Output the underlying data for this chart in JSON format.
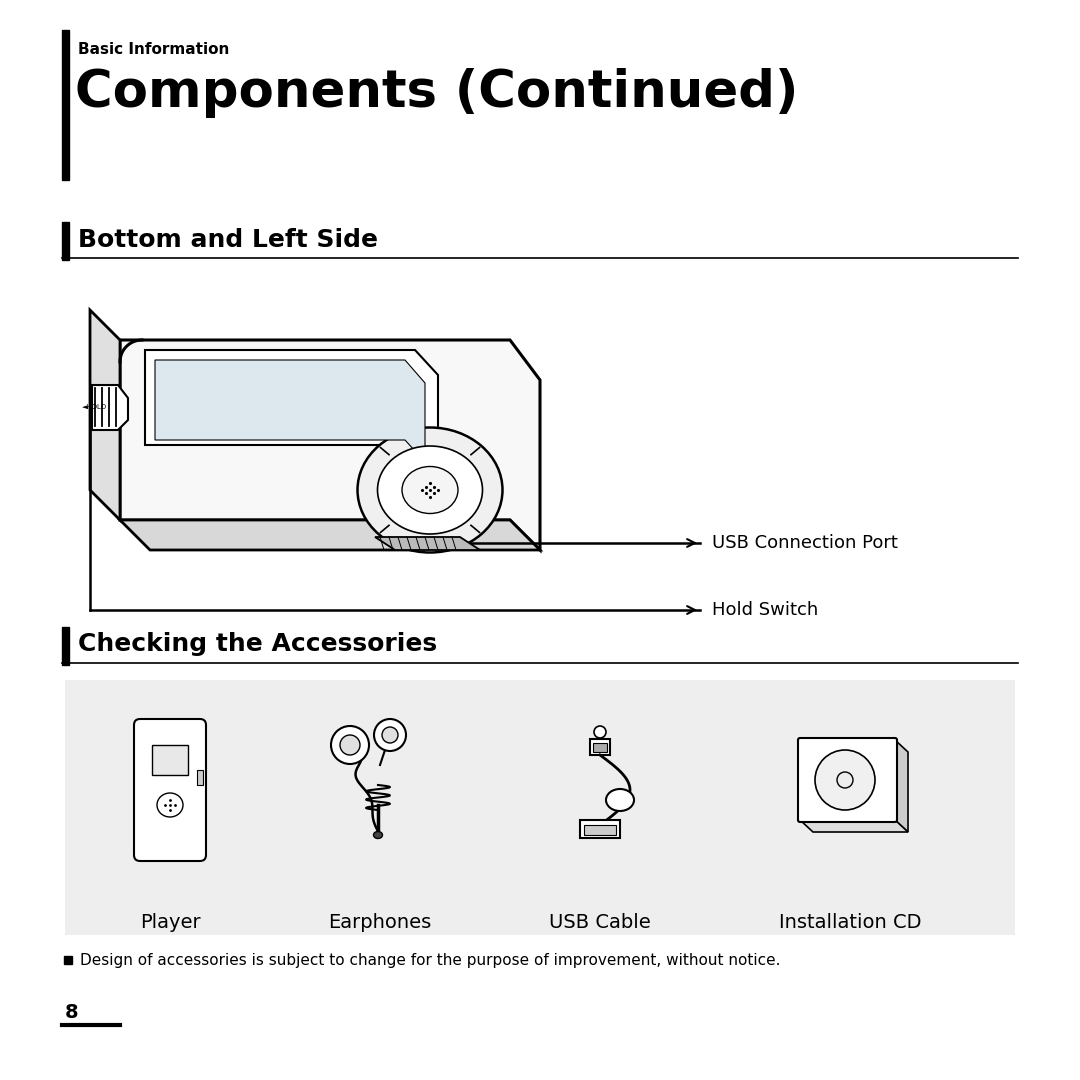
{
  "bg_color": "#ffffff",
  "left_bar_color": "#000000",
  "title_small": "Basic Information",
  "title_large": "Components (Continued)",
  "section1_title": "Bottom and Left Side",
  "section2_title": "Checking the Accessories",
  "label_usb_port": "USB Connection Port",
  "label_hold_switch": "Hold Switch",
  "accessories": [
    "Player",
    "Earphones",
    "USB Cable",
    "Installation CD"
  ],
  "footnote": "Design of accessories is subject to change for the purpose of improvement, without notice.",
  "page_number": "8",
  "accessories_bg": "#eeeeee"
}
